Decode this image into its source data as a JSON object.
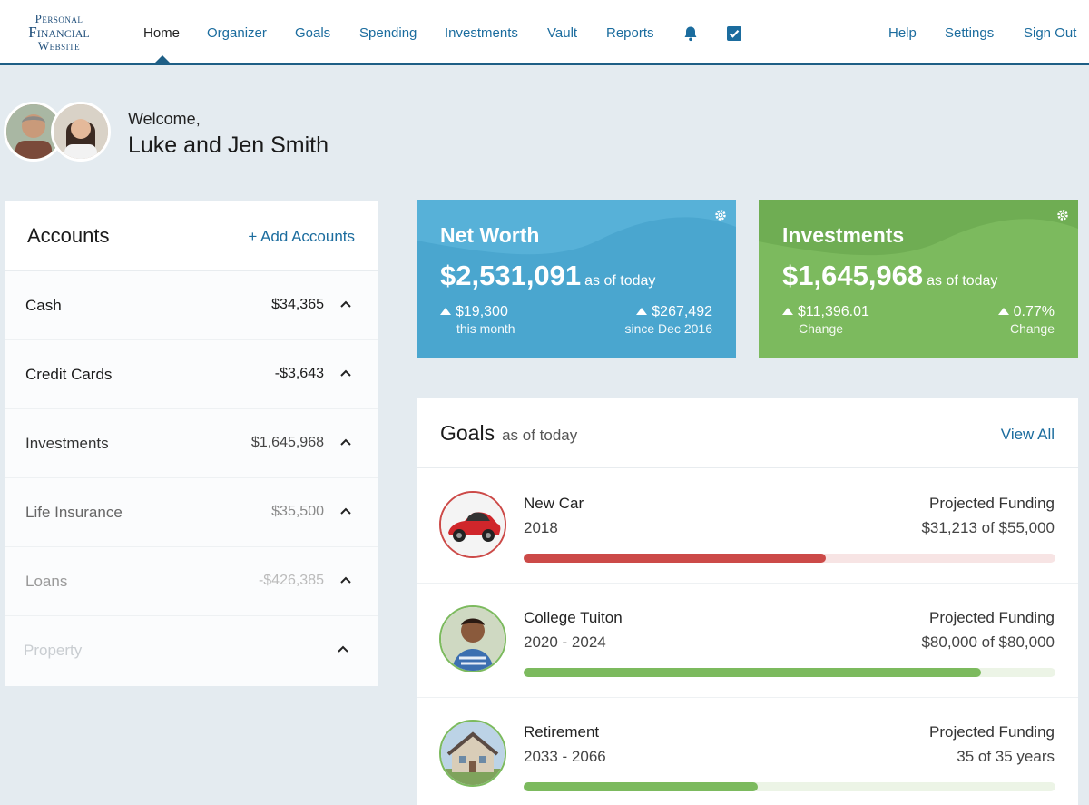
{
  "logo": {
    "line1": "Personal",
    "line2": "Financial",
    "line3": "Website"
  },
  "nav": {
    "items": [
      "Home",
      "Organizer",
      "Goals",
      "Spending",
      "Investments",
      "Vault",
      "Reports"
    ],
    "right": [
      "Help",
      "Settings",
      "Sign Out"
    ],
    "icons": [
      "bell-icon",
      "checkbox-icon"
    ]
  },
  "welcome": {
    "greeting": "Welcome,",
    "name": "Luke and Jen Smith"
  },
  "accounts": {
    "title": "Accounts",
    "add_label": "+ Add Accounts",
    "rows": [
      {
        "name": "Cash",
        "value": "$34,365"
      },
      {
        "name": "Credit Cards",
        "value": "-$3,643"
      },
      {
        "name": "Investments",
        "value": "$1,645,968"
      },
      {
        "name": "Life Insurance",
        "value": "$35,500"
      },
      {
        "name": "Loans",
        "value": "-$426,385"
      },
      {
        "name": "Property",
        "value": ""
      }
    ]
  },
  "net_worth": {
    "title": "Net Worth",
    "amount": "$2,531,091",
    "as_of": "as of today",
    "left_value": "$19,300",
    "left_sub": "this month",
    "right_value": "$267,492",
    "right_sub": "since Dec 2016",
    "color": "#4aa6cf"
  },
  "investments": {
    "title": "Investments",
    "amount": "$1,645,968",
    "as_of": "as of today",
    "left_value": "$11,396.01",
    "left_sub": "Change",
    "right_value": "0.77%",
    "right_sub": "Change",
    "color": "#7cba5e"
  },
  "goals": {
    "title": "Goals",
    "as_of": "as of today",
    "view_all": "View All",
    "items": [
      {
        "name": "New Car",
        "years": "2018",
        "proj_label": "Projected Funding",
        "funding": "$31,213 of $55,000",
        "progress": 0.5675,
        "color": "#cc4a48",
        "track": "#f7e4e4",
        "icon": "car-icon"
      },
      {
        "name": "College Tuiton",
        "years": "2020 - 2024",
        "proj_label": "Projected Funding",
        "funding": "$80,000 of $80,000",
        "progress": 0.86,
        "color": "#7cba5e",
        "track": "#ecf4e6",
        "icon": "student-icon"
      },
      {
        "name": "Retirement",
        "years": "2033 - 2066",
        "proj_label": "Projected Funding",
        "funding": "35 of 35 years",
        "progress": 0.44,
        "color": "#7cba5e",
        "track": "#ecf4e6",
        "icon": "house-icon"
      }
    ]
  }
}
